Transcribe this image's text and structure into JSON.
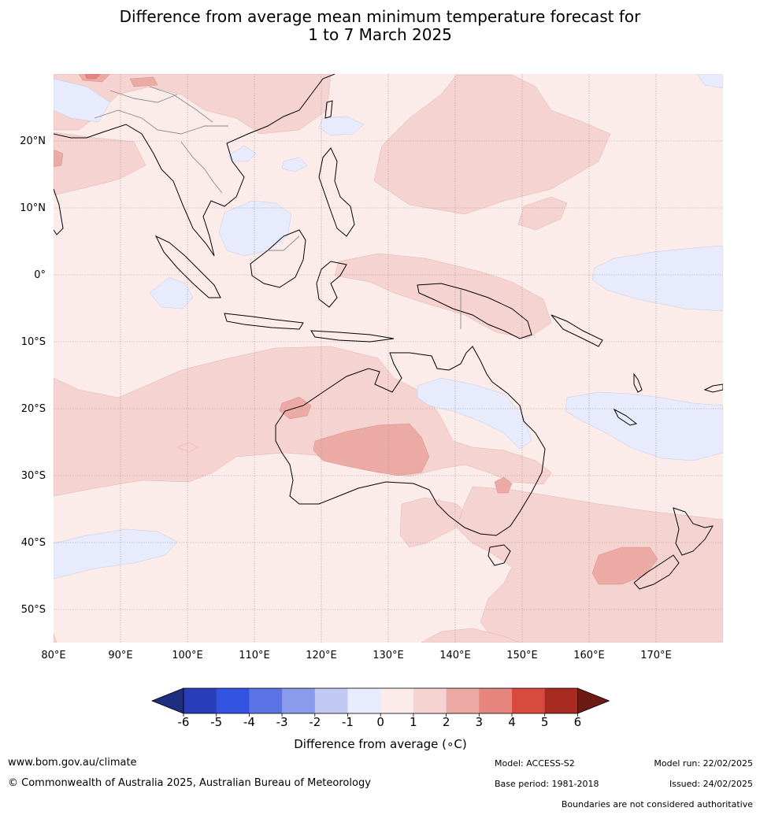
{
  "title": {
    "line1": "Difference from average mean minimum temperature forecast for",
    "line2": "1 to 7 March 2025"
  },
  "map": {
    "lat_labels": [
      "20°N",
      "10°N",
      "0°",
      "10°S",
      "20°S",
      "30°S",
      "40°S",
      "50°S"
    ],
    "lon_labels": [
      "80°E",
      "90°E",
      "100°E",
      "110°E",
      "120°E",
      "130°E",
      "140°E",
      "150°E",
      "160°E",
      "170°E"
    ],
    "lon_range": [
      80,
      180
    ],
    "lat_range": [
      -55,
      30
    ]
  },
  "colorbar": {
    "ticks": [
      "-6",
      "-5",
      "-4",
      "-3",
      "-2",
      "-1",
      "0",
      "1",
      "2",
      "3",
      "4",
      "5",
      "6"
    ],
    "colors": [
      "#1f2f80",
      "#2a3db8",
      "#3252e0",
      "#5c73e6",
      "#8a9aec",
      "#c1c9f4",
      "#e7ebfb",
      "#fbecea",
      "#f5d3d0",
      "#ecaaa5",
      "#e5857d",
      "#d94a3e",
      "#a82b22",
      "#6e1a14"
    ],
    "label": "Difference from average (∘C)"
  },
  "footer": {
    "website": "www.bom.gov.au/climate",
    "copyright": "© Commonwealth of Australia 2025, Australian Bureau of Meteorology",
    "model": "Model: ACCESS-S2",
    "model_run": "Model run: 22/02/2025",
    "base_period": "Base period: 1981-2018",
    "issued": "Issued: 24/02/2025",
    "disclaimer": "Boundaries are not considered authoritative"
  }
}
